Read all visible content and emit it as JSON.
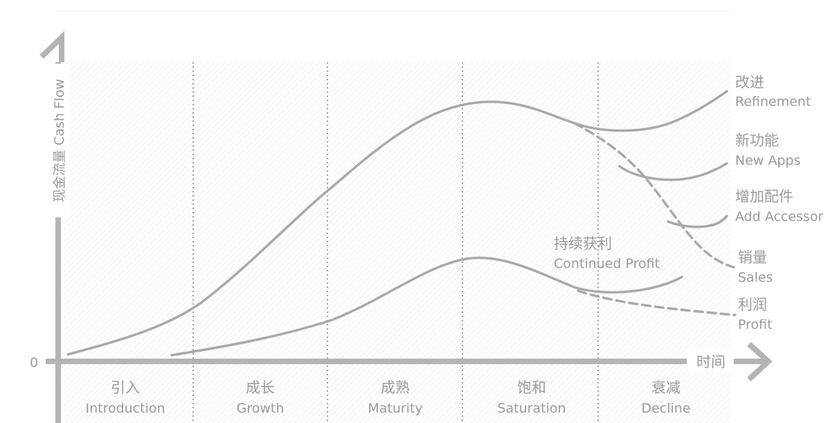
{
  "axes": {
    "y_label": "现金流量 Cash Flow",
    "x_label": "时间",
    "origin_label": "0"
  },
  "stages": [
    {
      "zh": "引入",
      "en": "Introduction"
    },
    {
      "zh": "成长",
      "en": "Growth"
    },
    {
      "zh": "成熟",
      "en": "Maturity"
    },
    {
      "zh": "饱和",
      "en": "Saturation"
    },
    {
      "zh": "衰减",
      "en": "Decline"
    }
  ],
  "annotations": {
    "continued_profit": {
      "zh": "持续获利",
      "en": "Continued Profit"
    },
    "refinement": {
      "zh": "改进",
      "en": "Refinement"
    },
    "new_apps": {
      "zh": "新功能",
      "en": "New Apps"
    },
    "add_accessories": {
      "zh": "增加配件",
      "en": "Add Accessor"
    },
    "sales": {
      "zh": "销量",
      "en": "Sales"
    },
    "profit": {
      "zh": "利润",
      "en": "Profit"
    }
  },
  "colors": {
    "curve": "#a8a8a8",
    "axis": "#b4b4b4",
    "hatch": "#e2e2e2",
    "text": "#9a9a9a"
  }
}
